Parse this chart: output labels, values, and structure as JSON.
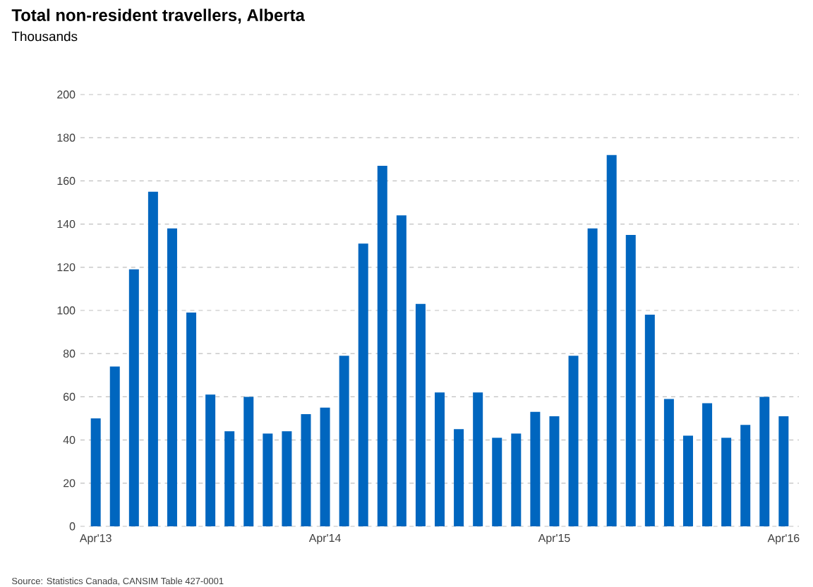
{
  "chart_data": {
    "type": "bar",
    "title": "Total non-resident travellers, Alberta",
    "subtitle": "Thousands",
    "categories": [
      "Apr'13",
      null,
      null,
      null,
      null,
      null,
      null,
      null,
      null,
      null,
      null,
      null,
      "Apr'14",
      null,
      null,
      null,
      null,
      null,
      null,
      null,
      null,
      null,
      null,
      null,
      "Apr'15",
      null,
      null,
      null,
      null,
      null,
      null,
      null,
      null,
      null,
      null,
      null,
      "Apr'16"
    ],
    "values": [
      50,
      74,
      119,
      155,
      138,
      99,
      61,
      44,
      60,
      43,
      44,
      52,
      55,
      79,
      131,
      167,
      144,
      103,
      62,
      45,
      62,
      41,
      43,
      53,
      51,
      79,
      138,
      172,
      135,
      98,
      59,
      42,
      57,
      41,
      47,
      60,
      51
    ],
    "color": "#0066bf",
    "ylim": [
      0,
      200
    ],
    "yticks": [
      0,
      20,
      40,
      60,
      80,
      100,
      120,
      140,
      160,
      180,
      200
    ],
    "grid": "y",
    "annotations": [
      "Source: Statistics Canada, CANSIM Table 427-0001"
    ]
  }
}
